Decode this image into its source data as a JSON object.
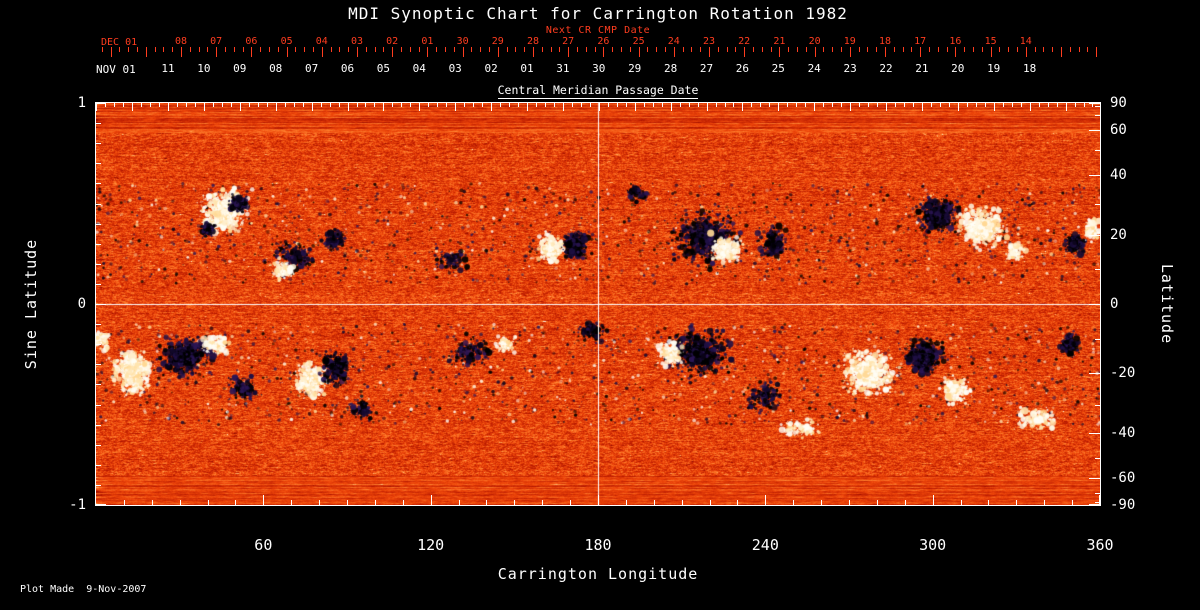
{
  "title": "MDI Synoptic Chart for Carrington Rotation 1982",
  "footer": "Plot Made  9-Nov-2007",
  "axes": {
    "next_cr": {
      "label": "Next CR CMP Date",
      "left_label": "DEC 01",
      "color": "#ff3d1f",
      "days": [
        "08",
        "07",
        "06",
        "05",
        "04",
        "03",
        "02",
        "01",
        "30",
        "29",
        "28",
        "27",
        "26",
        "25",
        "24",
        "23",
        "22",
        "21",
        "20",
        "19",
        "18",
        "17",
        "16",
        "15",
        "14"
      ]
    },
    "cmp": {
      "label": "Central Meridian Passage Date",
      "left_label": "NOV 01",
      "days": [
        "11",
        "10",
        "09",
        "08",
        "07",
        "06",
        "05",
        "04",
        "03",
        "02",
        "01",
        "31",
        "30",
        "29",
        "28",
        "27",
        "26",
        "25",
        "24",
        "23",
        "22",
        "21",
        "20",
        "19",
        "18"
      ]
    },
    "left": {
      "title": "Sine Latitude",
      "ticks": [
        "1",
        "0",
        "-1"
      ],
      "values": [
        1,
        0,
        -1
      ]
    },
    "right": {
      "title": "Latitude",
      "ticks": [
        "90",
        "60",
        "40",
        "20",
        "0",
        "-20",
        "-40",
        "-60",
        "-90"
      ],
      "values": [
        90,
        60,
        40,
        20,
        0,
        -20,
        -40,
        -60,
        -90
      ]
    },
    "bottom": {
      "title": "Carrington Longitude",
      "ticks": [
        "60",
        "120",
        "180",
        "240",
        "300",
        "360"
      ],
      "values": [
        60,
        120,
        180,
        240,
        300,
        360
      ]
    }
  },
  "chart_data": {
    "type": "heatmap",
    "title": "MDI Synoptic Chart for Carrington Rotation 1982",
    "xlabel": "Carrington Longitude",
    "ylabel_left": "Sine Latitude",
    "ylabel_right": "Latitude",
    "x_range": [
      0,
      360
    ],
    "y_range_sine_latitude": [
      -1,
      1
    ],
    "x_major_ticks": [
      60,
      120,
      180,
      240,
      300,
      360
    ],
    "y_left_ticks": [
      1,
      0,
      -1
    ],
    "y_right_ticks_deg": [
      90,
      60,
      40,
      20,
      0,
      -20,
      -40,
      -60,
      -90
    ],
    "grid": {
      "crosshair_longitude": 180,
      "crosshair_sine_latitude": 0,
      "color": "#ffffff"
    },
    "colormap_description": "Full-disk solar magnetogram synoptic map: noisy orange-red quiet-Sun background; white/cream patches = positive magnetic polarity flux; black/dark-violet patches = negative polarity flux; activity concentrated in two belts near +/-20 deg latitude; horizontal streak noise near the poles.",
    "palette": {
      "background_stops": [
        [
          0,
          "#300004"
        ],
        [
          0.06,
          "#6e0200"
        ],
        [
          0.3,
          "#b41600"
        ],
        [
          0.62,
          "#ee460a"
        ],
        [
          0.86,
          "#ff8430"
        ],
        [
          0.96,
          "#ffc07a"
        ],
        [
          1,
          "#fff2d8"
        ]
      ],
      "negative_shades": [
        "#000000",
        "#0a0418",
        "#150a30",
        "#201045",
        "#2c1655"
      ],
      "positive_shades": [
        "#fffef6",
        "#fff8e4",
        "#ffefcd",
        "#ffe4ae",
        "#ffd894"
      ]
    },
    "quiet_network": {
      "bands_sine_latitude": [
        [
          0.1,
          0.6
        ],
        [
          -0.6,
          -0.1
        ]
      ],
      "count_per_band": 1400,
      "dark_fraction": 0.72
    },
    "active_regions": [
      {
        "lon": 46,
        "slat": 0.46,
        "polarity": "pos",
        "w_deg": 10,
        "h_slat": 0.13,
        "strength": 0.95
      },
      {
        "lon": 51,
        "slat": 0.5,
        "polarity": "neg",
        "w_deg": 4,
        "h_slat": 0.05,
        "strength": 0.3
      },
      {
        "lon": 40,
        "slat": 0.37,
        "polarity": "neg",
        "w_deg": 3.5,
        "h_slat": 0.05,
        "strength": 0.18
      },
      {
        "lon": 71,
        "slat": 0.24,
        "polarity": "neg",
        "w_deg": 8,
        "h_slat": 0.1,
        "strength": 0.35
      },
      {
        "lon": 67,
        "slat": 0.17,
        "polarity": "pos",
        "w_deg": 5,
        "h_slat": 0.06,
        "strength": 0.22
      },
      {
        "lon": 85,
        "slat": 0.32,
        "polarity": "neg",
        "w_deg": 5,
        "h_slat": 0.06,
        "strength": 0.22
      },
      {
        "lon": 127,
        "slat": 0.22,
        "polarity": "neg",
        "w_deg": 8,
        "h_slat": 0.07,
        "strength": 0.16
      },
      {
        "lon": 163,
        "slat": 0.28,
        "polarity": "pos",
        "w_deg": 5,
        "h_slat": 0.08,
        "strength": 0.4
      },
      {
        "lon": 172,
        "slat": 0.29,
        "polarity": "neg",
        "w_deg": 5,
        "h_slat": 0.08,
        "strength": 0.55
      },
      {
        "lon": 194,
        "slat": 0.55,
        "polarity": "neg",
        "w_deg": 4,
        "h_slat": 0.05,
        "strength": 0.14
      },
      {
        "lon": 219,
        "slat": 0.33,
        "polarity": "neg",
        "w_deg": 15,
        "h_slat": 0.17,
        "strength": 0.85
      },
      {
        "lon": 226,
        "slat": 0.27,
        "polarity": "pos",
        "w_deg": 7,
        "h_slat": 0.08,
        "strength": 0.35
      },
      {
        "lon": 243,
        "slat": 0.31,
        "polarity": "neg",
        "w_deg": 6,
        "h_slat": 0.1,
        "strength": 0.3
      },
      {
        "lon": 302,
        "slat": 0.44,
        "polarity": "neg",
        "w_deg": 8,
        "h_slat": 0.1,
        "strength": 0.8
      },
      {
        "lon": 318,
        "slat": 0.38,
        "polarity": "pos",
        "w_deg": 9,
        "h_slat": 0.11,
        "strength": 0.9
      },
      {
        "lon": 330,
        "slat": 0.26,
        "polarity": "pos",
        "w_deg": 4,
        "h_slat": 0.05,
        "strength": 0.2
      },
      {
        "lon": 351,
        "slat": 0.3,
        "polarity": "neg",
        "w_deg": 4,
        "h_slat": 0.06,
        "strength": 0.3
      },
      {
        "lon": 357,
        "slat": 0.37,
        "polarity": "pos",
        "w_deg": 3,
        "h_slat": 0.06,
        "strength": 0.25
      },
      {
        "lon": 32,
        "slat": -0.26,
        "polarity": "neg",
        "w_deg": 11,
        "h_slat": 0.11,
        "strength": 0.9
      },
      {
        "lon": 13,
        "slat": -0.34,
        "polarity": "pos",
        "w_deg": 8,
        "h_slat": 0.13,
        "strength": 0.85
      },
      {
        "lon": 43,
        "slat": -0.2,
        "polarity": "pos",
        "w_deg": 5,
        "h_slat": 0.06,
        "strength": 0.3
      },
      {
        "lon": 53,
        "slat": -0.42,
        "polarity": "neg",
        "w_deg": 6,
        "h_slat": 0.07,
        "strength": 0.2
      },
      {
        "lon": 77,
        "slat": -0.38,
        "polarity": "pos",
        "w_deg": 7,
        "h_slat": 0.11,
        "strength": 0.6
      },
      {
        "lon": 86,
        "slat": -0.32,
        "polarity": "neg",
        "w_deg": 6,
        "h_slat": 0.09,
        "strength": 0.5
      },
      {
        "lon": 95,
        "slat": -0.52,
        "polarity": "neg",
        "w_deg": 6,
        "h_slat": 0.06,
        "strength": 0.15
      },
      {
        "lon": 134,
        "slat": -0.24,
        "polarity": "neg",
        "w_deg": 9,
        "h_slat": 0.09,
        "strength": 0.25
      },
      {
        "lon": 147,
        "slat": -0.2,
        "polarity": "pos",
        "w_deg": 4,
        "h_slat": 0.05,
        "strength": 0.14
      },
      {
        "lon": 178,
        "slat": -0.14,
        "polarity": "neg",
        "w_deg": 6,
        "h_slat": 0.06,
        "strength": 0.18
      },
      {
        "lon": 216,
        "slat": -0.24,
        "polarity": "neg",
        "w_deg": 13,
        "h_slat": 0.14,
        "strength": 0.9
      },
      {
        "lon": 206,
        "slat": -0.25,
        "polarity": "pos",
        "w_deg": 5,
        "h_slat": 0.07,
        "strength": 0.3
      },
      {
        "lon": 240,
        "slat": -0.46,
        "polarity": "neg",
        "w_deg": 7,
        "h_slat": 0.1,
        "strength": 0.25
      },
      {
        "lon": 252,
        "slat": -0.62,
        "polarity": "pos",
        "w_deg": 8,
        "h_slat": 0.05,
        "strength": 0.2
      },
      {
        "lon": 277,
        "slat": -0.34,
        "polarity": "pos",
        "w_deg": 11,
        "h_slat": 0.13,
        "strength": 0.95
      },
      {
        "lon": 297,
        "slat": -0.26,
        "polarity": "neg",
        "w_deg": 8,
        "h_slat": 0.1,
        "strength": 0.7
      },
      {
        "lon": 308,
        "slat": -0.43,
        "polarity": "pos",
        "w_deg": 6,
        "h_slat": 0.08,
        "strength": 0.3
      },
      {
        "lon": 337,
        "slat": -0.57,
        "polarity": "pos",
        "w_deg": 9,
        "h_slat": 0.06,
        "strength": 0.25
      },
      {
        "lon": 349,
        "slat": -0.2,
        "polarity": "neg",
        "w_deg": 4,
        "h_slat": 0.07,
        "strength": 0.25
      },
      {
        "lon": 2,
        "slat": -0.18,
        "polarity": "pos",
        "w_deg": 3,
        "h_slat": 0.06,
        "strength": 0.18
      }
    ]
  }
}
